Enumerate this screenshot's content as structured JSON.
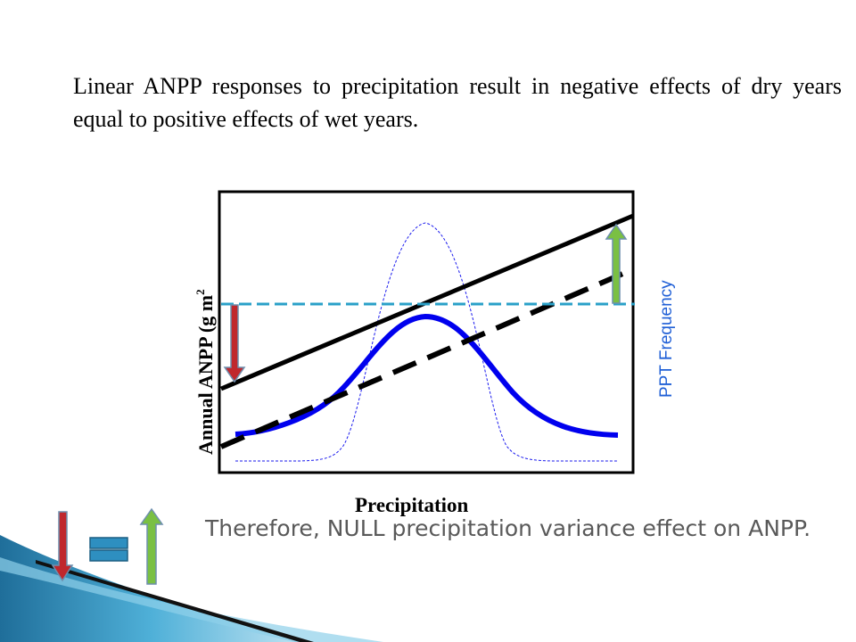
{
  "slide": {
    "text": "Linear ANPP responses to precipitation result in negative effects of dry years equal to positive effects of wet years.",
    "conclusion": "Therefore, NULL precipitation variance effect on ANPP."
  },
  "figure": {
    "y_axis_label": "Annual ANPP (g m",
    "y_axis_superscript": "2",
    "x_axis_label": "Precipitation",
    "right_axis_label": "PPT Frequency",
    "line_color": "#000000",
    "curve_color": "#0000ee",
    "reference_line_color": "#2aa0c8",
    "right_label_color": "#1f5fd6",
    "decrease_arrow_color": "#c0282d",
    "increase_arrow_color": "#7ac043",
    "equals_color": "#2e8fc0"
  },
  "symbols": {
    "decrease_arrow": "decrease-arrow",
    "equals_sign": "equals-sign",
    "increase_arrow": "increase-arrow"
  }
}
